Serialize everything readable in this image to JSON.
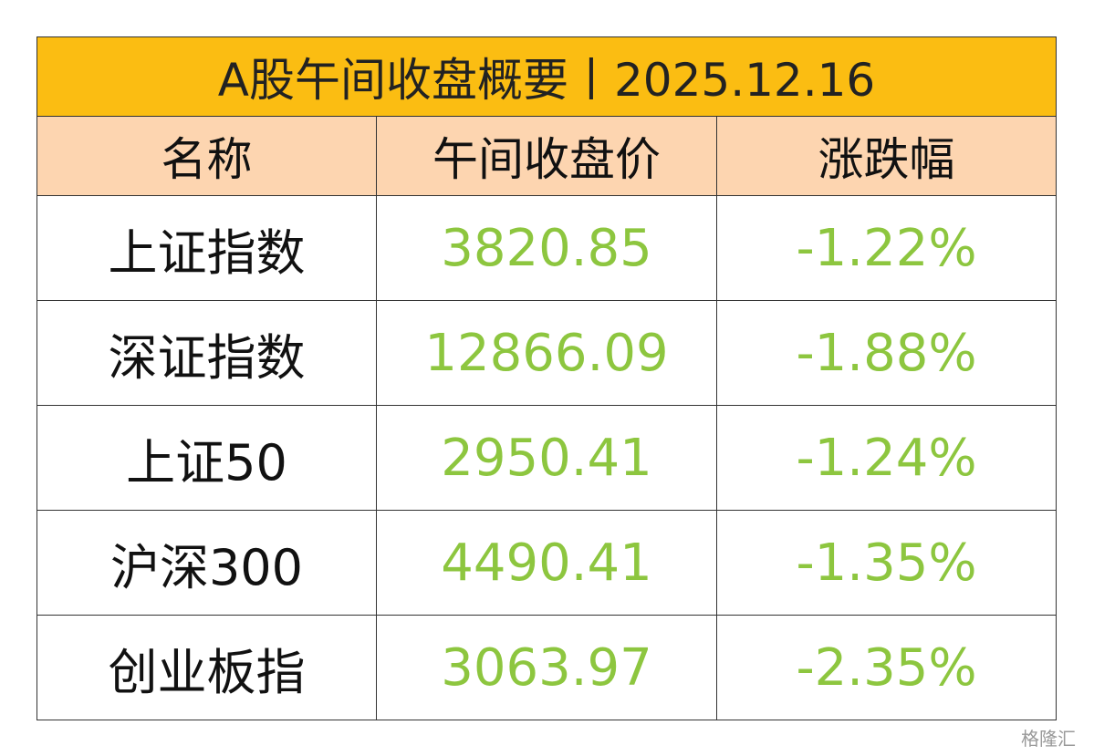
{
  "header": {
    "title": "A股午间收盘概要丨2025.12.16"
  },
  "table": {
    "columns": [
      "名称",
      "午间收盘价",
      "涨跌幅"
    ],
    "rows": [
      [
        "上证指数",
        "3820.85",
        "-1.22%"
      ],
      [
        "深证指数",
        "12866.09",
        "-1.88%"
      ],
      [
        "上证50",
        "2950.41",
        "-1.24%"
      ],
      [
        "沪深300",
        "4490.41",
        "-1.35%"
      ],
      [
        "创业板指",
        "3063.97",
        "-2.35%"
      ]
    ]
  },
  "watermark": {
    "text": "格隆汇"
  }
}
